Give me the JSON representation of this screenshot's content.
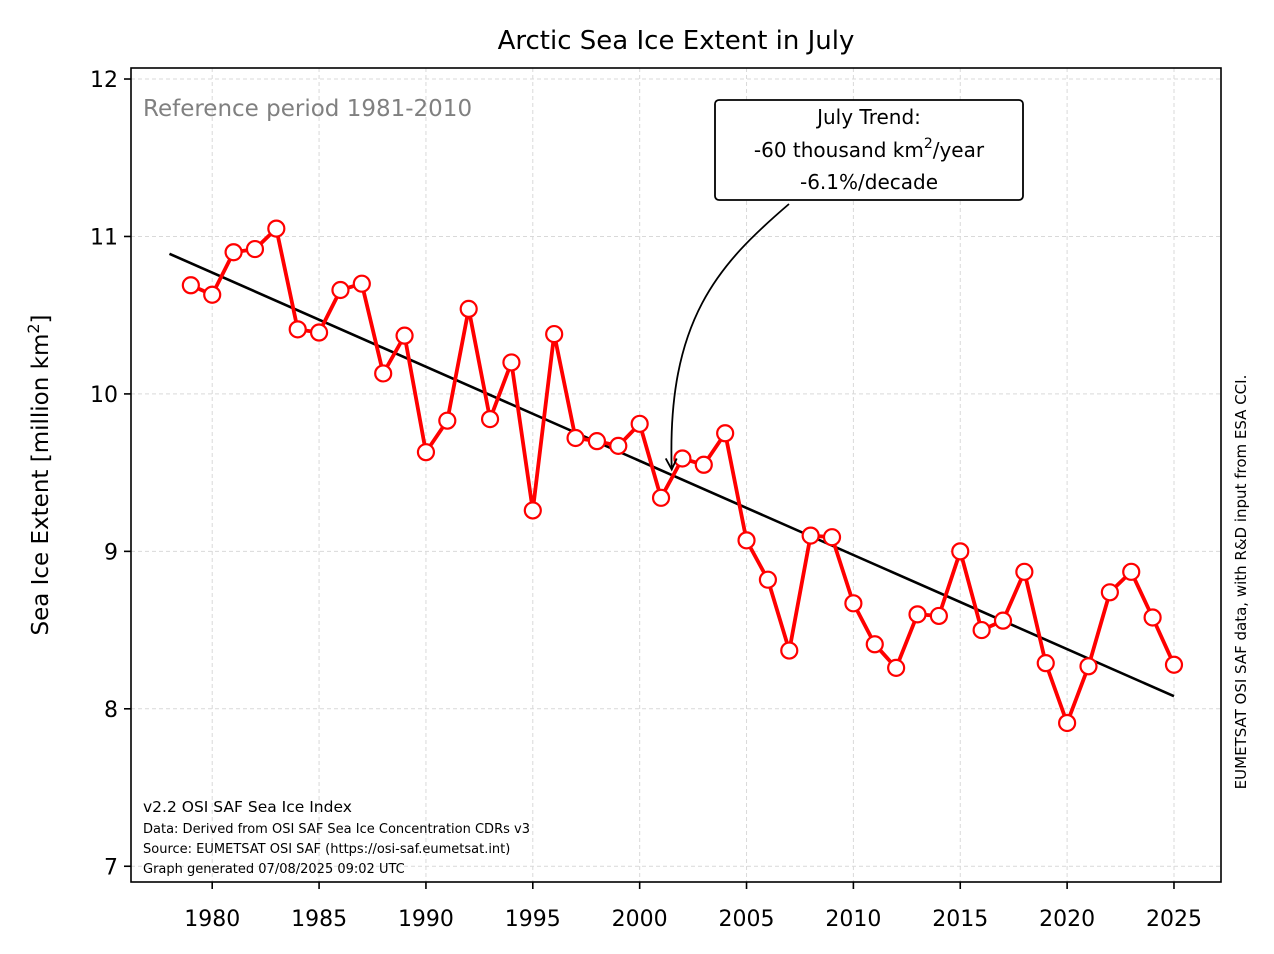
{
  "chart_data": {
    "type": "line",
    "title": "Arctic Sea Ice Extent in July",
    "xlabel": "",
    "ylabel": "Sea Ice Extent [million km²]",
    "ylabel_parts": {
      "pre": "Sea Ice Extent [million km",
      "sup": "2",
      "post": "]"
    },
    "xlim": [
      1976.2,
      2027.2
    ],
    "ylim": [
      6.9,
      12.07
    ],
    "xticks": [
      1980,
      1985,
      1990,
      1995,
      2000,
      2005,
      2010,
      2015,
      2020,
      2025
    ],
    "yticks": [
      7,
      8,
      9,
      10,
      11,
      12
    ],
    "grid": true,
    "colors": {
      "series": "#ff0000",
      "trend": "#000000",
      "reference_text": "#808080"
    },
    "series": [
      {
        "x": [
          1979,
          1980,
          1981,
          1982,
          1983,
          1984,
          1985,
          1986,
          1987,
          1988,
          1989,
          1990,
          1991,
          1992,
          1993,
          1994,
          1995,
          1996,
          1997,
          1998,
          1999,
          2000,
          2001,
          2002,
          2003,
          2004,
          2005,
          2006,
          2007,
          2008,
          2009,
          2010,
          2011,
          2012,
          2013,
          2014,
          2015,
          2016,
          2017,
          2018,
          2019,
          2020,
          2021,
          2022,
          2023,
          2024,
          2025
        ],
        "values": [
          10.69,
          10.63,
          10.9,
          10.92,
          11.05,
          10.41,
          10.39,
          10.66,
          10.7,
          10.13,
          10.37,
          9.63,
          9.83,
          10.54,
          9.84,
          10.2,
          9.26,
          10.38,
          9.72,
          9.7,
          9.67,
          9.81,
          9.34,
          9.59,
          9.55,
          9.75,
          9.07,
          8.82,
          8.37,
          9.1,
          9.09,
          8.67,
          8.41,
          8.26,
          8.6,
          8.59,
          9.0,
          8.5,
          8.56,
          8.87,
          8.29,
          7.91,
          8.27,
          8.74,
          8.87,
          8.58,
          8.28
        ]
      }
    ],
    "trend": {
      "x": [
        1978,
        2025
      ],
      "y": [
        10.89,
        8.08
      ]
    },
    "reference_text": "Reference period 1981-2010",
    "annotation": {
      "line1": "July Trend:",
      "line2_pre": "-60 thousand km",
      "line2_sup": "2",
      "line2_post": "/year",
      "line3": "-6.1%/decade",
      "arrow_target": {
        "x": 2001.5,
        "y": 9.52
      }
    },
    "footer": [
      "v2.2 OSI SAF Sea Ice Index",
      "Data: Derived from OSI SAF Sea Ice Concentration CDRs v3",
      "Source: EUMETSAT OSI SAF (https://osi-saf.eumetsat.int)",
      "Graph generated 07/08/2025 09:02 UTC"
    ],
    "side_text": "EUMETSAT OSI SAF data, with R&D input from ESA CCI."
  }
}
